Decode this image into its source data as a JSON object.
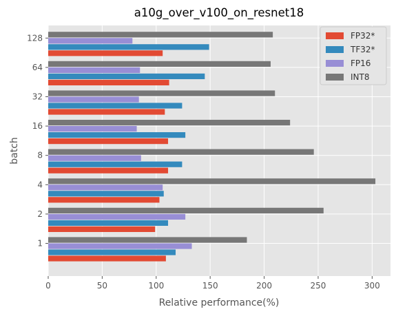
{
  "chart_data": {
    "type": "bar",
    "orientation": "horizontal",
    "title": "a10g_over_v100_on_resnet18",
    "xlabel": "Relative performance(%)",
    "ylabel": "batch",
    "categories": [
      "1",
      "2",
      "4",
      "8",
      "16",
      "32",
      "64",
      "128"
    ],
    "xlim": [
      0,
      317
    ],
    "xticks": [
      0,
      50,
      100,
      150,
      200,
      250,
      300
    ],
    "grid": true,
    "legend_position": "top-right",
    "series": [
      {
        "name": "FP32*",
        "color": "#E24A33",
        "values": [
          109,
          99,
          103,
          111,
          111,
          108,
          112,
          106
        ]
      },
      {
        "name": "TF32*",
        "color": "#348ABD",
        "values": [
          118,
          111,
          107,
          124,
          127,
          124,
          145,
          149
        ]
      },
      {
        "name": "FP16",
        "color": "#988ED5",
        "values": [
          133,
          127,
          106,
          86,
          82,
          84,
          85,
          78
        ]
      },
      {
        "name": "INT8",
        "color": "#777777",
        "values": [
          184,
          255,
          303,
          246,
          224,
          210,
          206,
          208
        ]
      }
    ]
  }
}
